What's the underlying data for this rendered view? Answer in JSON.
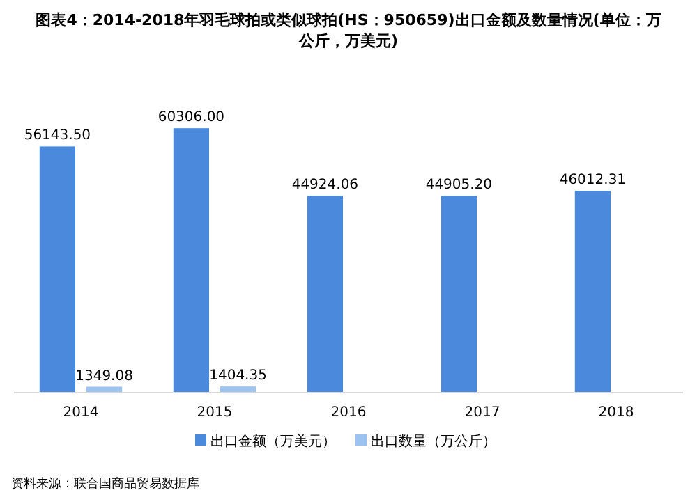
{
  "chart_data": {
    "type": "bar",
    "title": "图表4：2014-2018年羽毛球拍或类似球拍(HS：950659)出口金额及数量情况(单位：万公斤，万美元)",
    "categories": [
      "2014",
      "2015",
      "2016",
      "2017",
      "2018"
    ],
    "series": [
      {
        "name": "出口金额（万美元）",
        "color": "#4a89dc",
        "values": [
          56143.5,
          60306.0,
          44924.06,
          44905.2,
          46012.31
        ],
        "value_labels": [
          "56143.50",
          "60306.00",
          "44924.06",
          "44905.20",
          "46012.31"
        ]
      },
      {
        "name": "出口数量（万公斤）",
        "color": "#9cc3f0",
        "values": [
          1349.08,
          1404.35,
          null,
          null,
          null
        ],
        "value_labels": [
          "1349.08",
          "1404.35",
          null,
          null,
          null
        ]
      }
    ],
    "legend": "bottom",
    "annotations": [
      "资料来源：联合国商品贸易数据库"
    ]
  }
}
